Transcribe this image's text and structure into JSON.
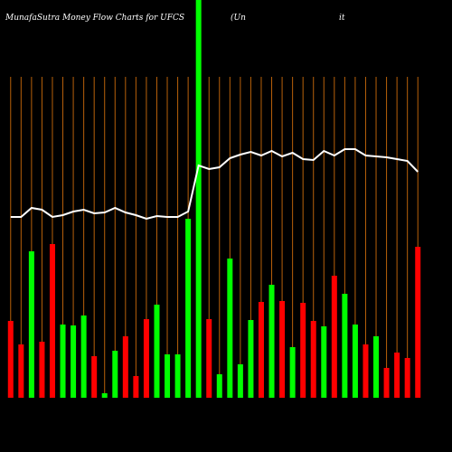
{
  "chart_data": {
    "type": "bar",
    "title": "MunafaSutra  Money Flow  Charts for UFCS",
    "subtitle": "(Un",
    "annotation": "it",
    "categories": [
      null,
      null,
      null,
      null,
      null,
      null,
      null,
      null,
      null,
      null,
      null,
      null,
      null,
      null,
      null,
      null,
      null,
      null,
      null,
      null,
      null,
      null,
      null,
      null,
      null,
      null,
      null,
      null,
      null,
      null,
      null,
      null,
      null,
      null,
      null,
      null,
      null,
      null,
      null,
      null
    ],
    "series": [
      {
        "values": [
          85,
          59,
          162,
          62,
          170,
          81,
          80,
          91,
          46,
          5,
          52,
          68,
          24,
          87,
          103,
          48,
          48,
          198,
          440,
          87,
          26,
          154,
          37,
          86,
          106,
          125,
          107,
          56,
          105,
          85,
          79,
          135,
          115,
          81,
          59,
          68,
          33,
          50,
          44,
          167
        ],
        "colors": [
          "#ff0000",
          "#ff0000",
          "#00ff00",
          "#ff0000",
          "#ff0000",
          "#00ff00",
          "#00ff00",
          "#00ff00",
          "#ff0000",
          "#00ff00",
          "#00ff00",
          "#ff0000",
          "#ff0000",
          "#ff0000",
          "#00ff00",
          "#00ff00",
          "#00ff00",
          "#00ff00",
          "#00ff00",
          "#ff0000",
          "#00ff00",
          "#00ff00",
          "#00ff00",
          "#00ff00",
          "#ff0000",
          "#00ff00",
          "#ff0000",
          "#00ff00",
          "#ff0000",
          "#ff0000",
          "#00ff00",
          "#ff0000",
          "#00ff00",
          "#00ff00",
          "#ff0000",
          "#00ff00",
          "#ff0000",
          "#ff0000",
          "#ff0000",
          "#ff0000"
        ]
      },
      {
        "type": "line",
        "color": "#ffffff",
        "values": [
          200,
          200,
          210,
          208,
          200,
          202,
          206,
          208,
          204,
          205,
          210,
          205,
          202,
          198,
          201,
          200,
          200,
          206,
          257,
          253,
          255,
          265,
          269,
          272,
          268,
          273,
          267,
          271,
          264,
          263,
          273,
          268,
          275,
          275,
          268,
          267,
          266,
          264,
          262,
          250
        ]
      }
    ],
    "grid_color": "#b8610a",
    "ylim": [
      0,
      440
    ]
  }
}
